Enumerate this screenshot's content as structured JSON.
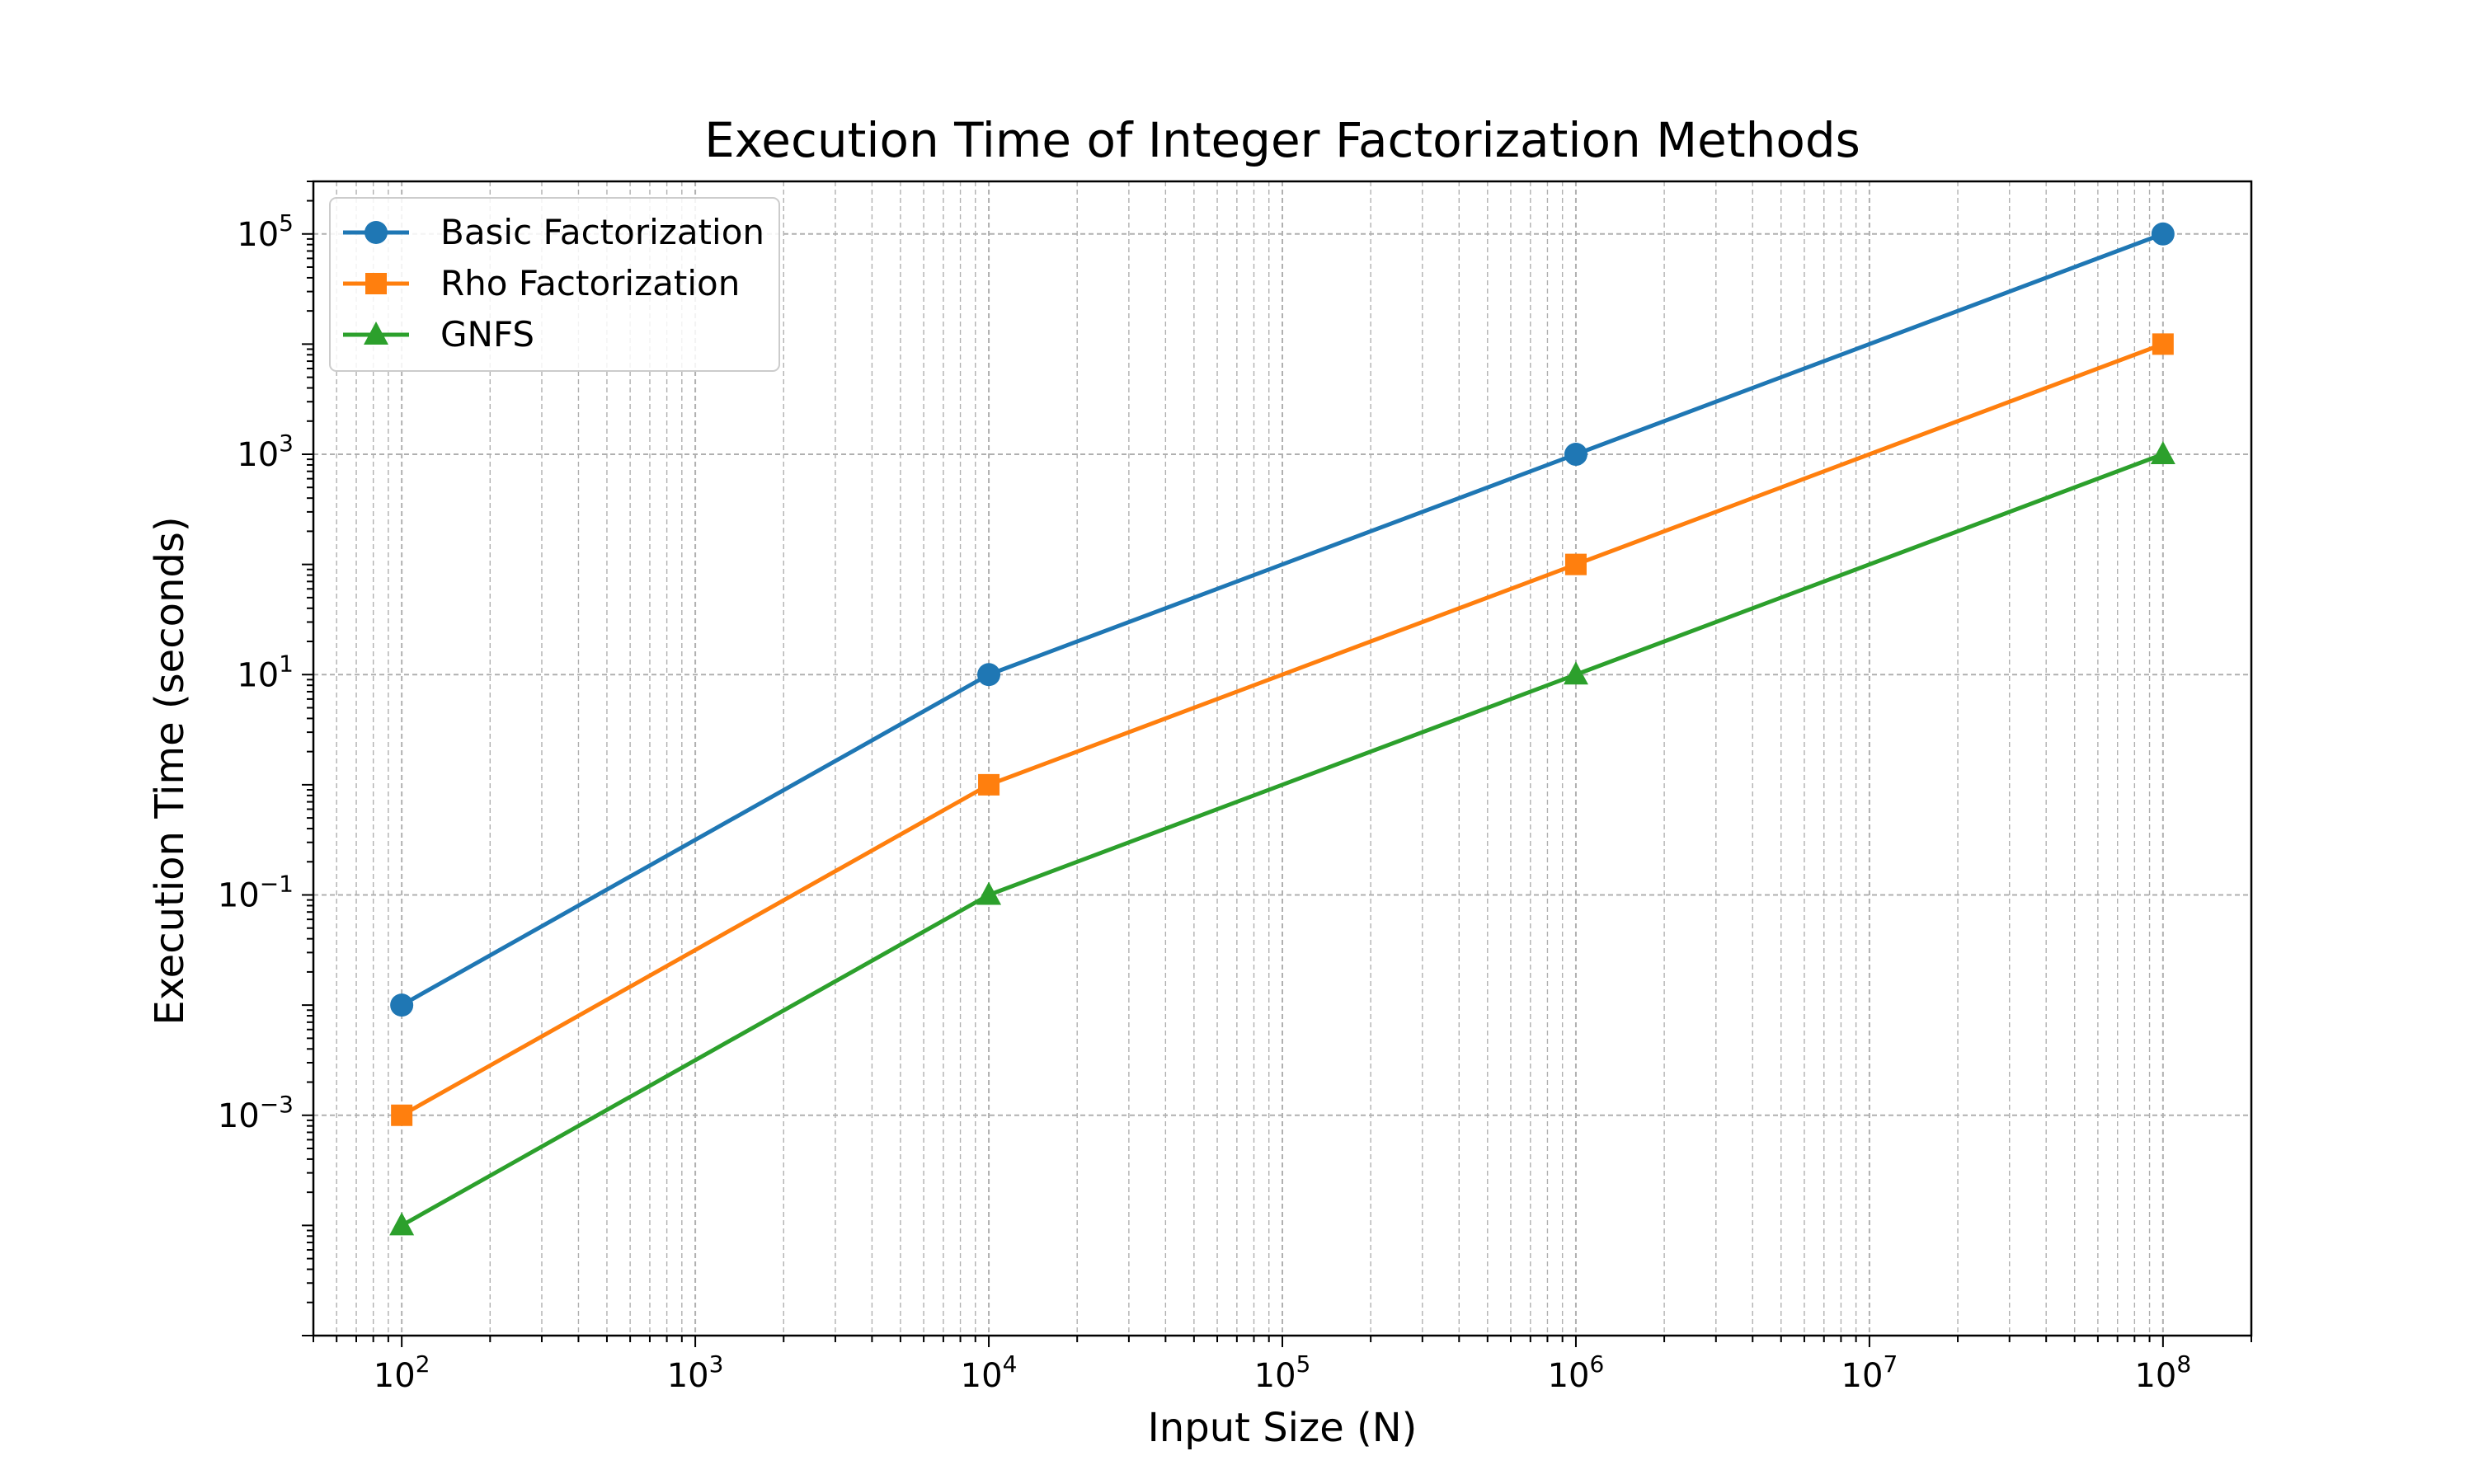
{
  "chart_data": {
    "type": "line",
    "title": "Execution Time of Integer Factorization Methods",
    "xlabel": "Input Size (N)",
    "ylabel": "Execution Time (seconds)",
    "x_scale": "log",
    "y_scale": "log",
    "x": [
      100,
      10000,
      1000000,
      100000000
    ],
    "xlim": [
      50,
      200000000
    ],
    "ylim": [
      1e-05,
      300000
    ],
    "x_ticks": [
      {
        "value": 100,
        "base": "10",
        "exp": "2"
      },
      {
        "value": 1000,
        "base": "10",
        "exp": "3"
      },
      {
        "value": 10000,
        "base": "10",
        "exp": "4"
      },
      {
        "value": 100000,
        "base": "10",
        "exp": "5"
      },
      {
        "value": 1000000,
        "base": "10",
        "exp": "6"
      },
      {
        "value": 10000000,
        "base": "10",
        "exp": "7"
      },
      {
        "value": 100000000,
        "base": "10",
        "exp": "8"
      }
    ],
    "y_ticks": [
      {
        "value": 0.001,
        "base": "10",
        "exp": "−3"
      },
      {
        "value": 0.1,
        "base": "10",
        "exp": "−1"
      },
      {
        "value": 10,
        "base": "10",
        "exp": "1"
      },
      {
        "value": 1000,
        "base": "10",
        "exp": "3"
      },
      {
        "value": 100000,
        "base": "10",
        "exp": "5"
      }
    ],
    "grid": true,
    "legend_position": "upper-left",
    "series": [
      {
        "name": "Basic Factorization",
        "values": [
          0.01,
          10,
          1000,
          100000
        ],
        "color": "#1f77b4",
        "marker": "circle"
      },
      {
        "name": "Rho Factorization",
        "values": [
          0.001,
          1,
          100,
          10000
        ],
        "color": "#ff7f0e",
        "marker": "square"
      },
      {
        "name": "GNFS",
        "values": [
          0.0001,
          0.1,
          10,
          1000
        ],
        "color": "#2ca02c",
        "marker": "triangle"
      }
    ]
  }
}
